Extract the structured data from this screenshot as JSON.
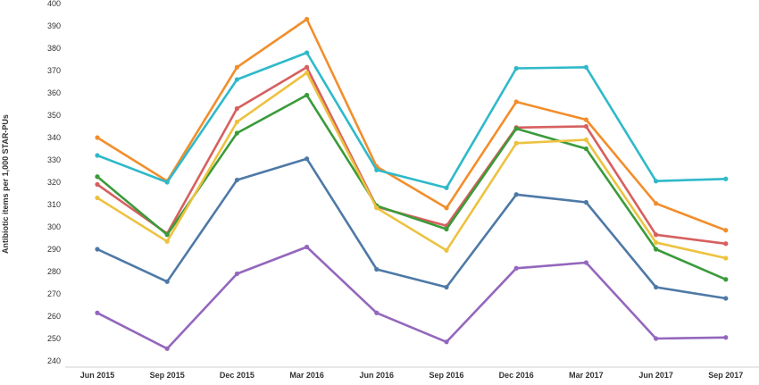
{
  "chart_data": {
    "type": "line",
    "ylabel": "Antibiotic items per 1,000 STAR-PUs",
    "ylim": [
      240,
      400
    ],
    "yticks": [
      240,
      250,
      260,
      270,
      280,
      290,
      300,
      310,
      320,
      330,
      340,
      350,
      360,
      370,
      380,
      390,
      400
    ],
    "categories": [
      "Jun 2015",
      "Sep 2015",
      "Dec 2015",
      "Mar 2016",
      "Jun 2016",
      "Sep 2016",
      "Dec 2016",
      "Mar 2017",
      "Jun 2017",
      "Sep 2017"
    ],
    "grid": false,
    "series": [
      {
        "color": "#F28E2B",
        "values": [
          340,
          320.5,
          371.5,
          393,
          327,
          308.5,
          356,
          348,
          310.5,
          298.5
        ]
      },
      {
        "color": "#2FB9C9",
        "values": [
          332,
          320,
          366,
          378,
          325.5,
          317.5,
          371,
          371.5,
          320.5,
          321.5
        ]
      },
      {
        "color": "#D75F5F",
        "values": [
          319,
          297,
          353,
          371.5,
          309,
          300.5,
          344.5,
          345,
          296.5,
          292.5
        ]
      },
      {
        "color": "#3A9B3A",
        "values": [
          322.5,
          296.5,
          342,
          359,
          309.5,
          299,
          344,
          335,
          290,
          276.5
        ]
      },
      {
        "color": "#EDC240",
        "values": [
          313,
          293.5,
          347,
          369,
          308.5,
          289.5,
          337.5,
          339,
          293,
          286
        ]
      },
      {
        "color": "#4E79A7",
        "values": [
          290,
          275.5,
          321,
          330.5,
          281,
          273,
          314.5,
          311,
          273,
          268
        ]
      },
      {
        "color": "#9467BD",
        "values": [
          261.5,
          245.5,
          279,
          291,
          261.5,
          248.5,
          281.5,
          284,
          250,
          250.5
        ]
      }
    ]
  }
}
